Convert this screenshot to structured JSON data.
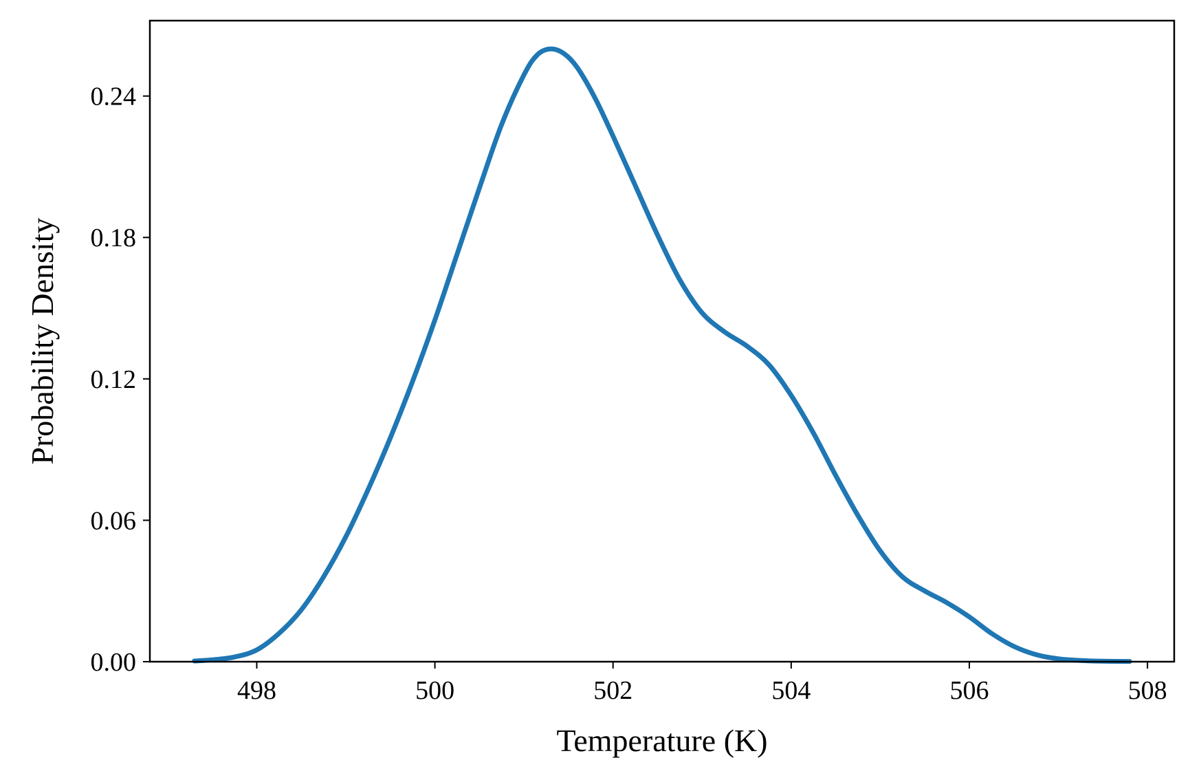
{
  "chart_data": {
    "type": "line",
    "title": "",
    "xlabel": "Temperature (K)",
    "ylabel": "Probability Density",
    "xlim": [
      496.8,
      508.3
    ],
    "ylim": [
      0.0,
      0.272
    ],
    "x_ticks": [
      498,
      500,
      502,
      504,
      506,
      508
    ],
    "x_tick_labels": [
      "498",
      "500",
      "502",
      "504",
      "506",
      "508"
    ],
    "y_ticks": [
      0.0,
      0.06,
      0.12,
      0.18,
      0.24
    ],
    "y_tick_labels": [
      "0.00",
      "0.06",
      "0.12",
      "0.18",
      "0.24"
    ],
    "grid": false,
    "legend": "none",
    "series": [
      {
        "color": "#1f77b4",
        "x": [
          497.3,
          497.5,
          497.75,
          498.0,
          498.25,
          498.5,
          498.75,
          499.0,
          499.25,
          499.5,
          499.75,
          500.0,
          500.25,
          500.5,
          500.75,
          501.0,
          501.15,
          501.3,
          501.45,
          501.6,
          501.8,
          502.0,
          502.25,
          502.5,
          502.75,
          503.0,
          503.25,
          503.5,
          503.75,
          504.0,
          504.25,
          504.5,
          504.75,
          505.0,
          505.25,
          505.5,
          505.75,
          506.0,
          506.25,
          506.5,
          506.75,
          507.0,
          507.25,
          507.5,
          507.8
        ],
        "y": [
          0.0003,
          0.0008,
          0.002,
          0.005,
          0.012,
          0.022,
          0.036,
          0.053,
          0.073,
          0.095,
          0.119,
          0.145,
          0.173,
          0.201,
          0.228,
          0.249,
          0.2575,
          0.26,
          0.258,
          0.252,
          0.239,
          0.223,
          0.202,
          0.181,
          0.162,
          0.148,
          0.14,
          0.134,
          0.126,
          0.113,
          0.097,
          0.079,
          0.062,
          0.047,
          0.036,
          0.03,
          0.025,
          0.019,
          0.012,
          0.0065,
          0.003,
          0.0012,
          0.0005,
          0.0002,
          0.0001
        ]
      }
    ]
  }
}
